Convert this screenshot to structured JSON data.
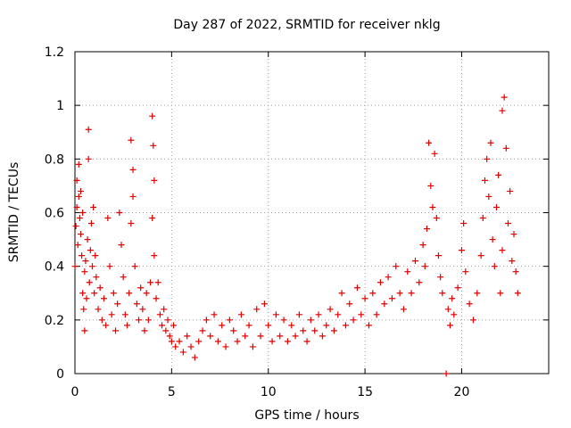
{
  "chart_data": {
    "type": "scatter",
    "title": "Day 287 of 2022, SRMTID for receiver nklg",
    "xlabel": "GPS time / hours",
    "ylabel": "SRMTID / TECUs",
    "xlim": [
      0,
      24.5
    ],
    "ylim": [
      0,
      1.2
    ],
    "grid": true,
    "marker": "+",
    "color": "#e00000",
    "x_ticks": [
      0,
      5,
      10,
      15,
      20
    ],
    "x_tick_labels": [
      "0",
      "5",
      "10",
      "15",
      "20"
    ],
    "y_ticks": [
      0,
      0.2,
      0.4,
      0.6,
      0.8,
      1.0,
      1.2
    ],
    "y_tick_labels": [
      "0",
      "0.2",
      "0.4",
      "0.6",
      "0.8",
      "1",
      "1.2"
    ],
    "series": [
      {
        "name": "SRMTID",
        "points": [
          [
            0.0,
            0.4
          ],
          [
            0.05,
            0.55
          ],
          [
            0.1,
            0.72
          ],
          [
            0.1,
            0.62
          ],
          [
            0.15,
            0.48
          ],
          [
            0.2,
            0.66
          ],
          [
            0.2,
            0.78
          ],
          [
            0.25,
            0.58
          ],
          [
            0.3,
            0.52
          ],
          [
            0.3,
            0.68
          ],
          [
            0.35,
            0.44
          ],
          [
            0.4,
            0.6
          ],
          [
            0.4,
            0.3
          ],
          [
            0.45,
            0.24
          ],
          [
            0.5,
            0.16
          ],
          [
            0.5,
            0.38
          ],
          [
            0.55,
            0.42
          ],
          [
            0.6,
            0.28
          ],
          [
            0.65,
            0.5
          ],
          [
            0.7,
            0.91
          ],
          [
            0.7,
            0.8
          ],
          [
            0.75,
            0.34
          ],
          [
            0.8,
            0.46
          ],
          [
            0.85,
            0.56
          ],
          [
            0.9,
            0.4
          ],
          [
            0.95,
            0.62
          ],
          [
            1.0,
            0.3
          ],
          [
            1.05,
            0.44
          ],
          [
            1.1,
            0.36
          ],
          [
            1.2,
            0.24
          ],
          [
            1.3,
            0.32
          ],
          [
            1.4,
            0.2
          ],
          [
            1.5,
            0.28
          ],
          [
            1.6,
            0.18
          ],
          [
            1.7,
            0.58
          ],
          [
            1.8,
            0.4
          ],
          [
            1.9,
            0.22
          ],
          [
            2.0,
            0.3
          ],
          [
            2.1,
            0.16
          ],
          [
            2.2,
            0.26
          ],
          [
            2.3,
            0.6
          ],
          [
            2.4,
            0.48
          ],
          [
            2.5,
            0.36
          ],
          [
            2.6,
            0.22
          ],
          [
            2.7,
            0.18
          ],
          [
            2.8,
            0.3
          ],
          [
            2.9,
            0.56
          ],
          [
            2.9,
            0.87
          ],
          [
            3.0,
            0.76
          ],
          [
            3.0,
            0.66
          ],
          [
            3.1,
            0.4
          ],
          [
            3.2,
            0.26
          ],
          [
            3.3,
            0.2
          ],
          [
            3.4,
            0.32
          ],
          [
            3.5,
            0.24
          ],
          [
            3.6,
            0.16
          ],
          [
            3.7,
            0.3
          ],
          [
            3.8,
            0.2
          ],
          [
            3.9,
            0.34
          ],
          [
            4.0,
            0.58
          ],
          [
            4.0,
            0.96
          ],
          [
            4.05,
            0.85
          ],
          [
            4.1,
            0.72
          ],
          [
            4.1,
            0.44
          ],
          [
            4.2,
            0.28
          ],
          [
            4.3,
            0.34
          ],
          [
            4.4,
            0.22
          ],
          [
            4.5,
            0.18
          ],
          [
            4.6,
            0.24
          ],
          [
            4.7,
            0.16
          ],
          [
            4.8,
            0.2
          ],
          [
            4.9,
            0.14
          ],
          [
            5.0,
            0.12
          ],
          [
            5.1,
            0.18
          ],
          [
            5.2,
            0.1
          ],
          [
            5.4,
            0.12
          ],
          [
            5.6,
            0.08
          ],
          [
            5.8,
            0.14
          ],
          [
            6.0,
            0.1
          ],
          [
            6.2,
            0.06
          ],
          [
            6.4,
            0.12
          ],
          [
            6.6,
            0.16
          ],
          [
            6.8,
            0.2
          ],
          [
            7.0,
            0.14
          ],
          [
            7.2,
            0.22
          ],
          [
            7.4,
            0.12
          ],
          [
            7.6,
            0.18
          ],
          [
            7.8,
            0.1
          ],
          [
            8.0,
            0.2
          ],
          [
            8.2,
            0.16
          ],
          [
            8.4,
            0.12
          ],
          [
            8.6,
            0.22
          ],
          [
            8.8,
            0.14
          ],
          [
            9.0,
            0.18
          ],
          [
            9.2,
            0.1
          ],
          [
            9.4,
            0.24
          ],
          [
            9.6,
            0.14
          ],
          [
            9.8,
            0.26
          ],
          [
            10.0,
            0.18
          ],
          [
            10.2,
            0.12
          ],
          [
            10.4,
            0.22
          ],
          [
            10.6,
            0.14
          ],
          [
            10.8,
            0.2
          ],
          [
            11.0,
            0.12
          ],
          [
            11.2,
            0.18
          ],
          [
            11.4,
            0.14
          ],
          [
            11.6,
            0.22
          ],
          [
            11.8,
            0.16
          ],
          [
            12.0,
            0.12
          ],
          [
            12.2,
            0.2
          ],
          [
            12.4,
            0.16
          ],
          [
            12.6,
            0.22
          ],
          [
            12.8,
            0.14
          ],
          [
            13.0,
            0.18
          ],
          [
            13.2,
            0.24
          ],
          [
            13.4,
            0.16
          ],
          [
            13.6,
            0.22
          ],
          [
            13.8,
            0.3
          ],
          [
            14.0,
            0.18
          ],
          [
            14.2,
            0.26
          ],
          [
            14.4,
            0.2
          ],
          [
            14.6,
            0.32
          ],
          [
            14.8,
            0.22
          ],
          [
            15.0,
            0.28
          ],
          [
            15.2,
            0.18
          ],
          [
            15.4,
            0.3
          ],
          [
            15.6,
            0.22
          ],
          [
            15.8,
            0.34
          ],
          [
            16.0,
            0.26
          ],
          [
            16.2,
            0.36
          ],
          [
            16.4,
            0.28
          ],
          [
            16.6,
            0.4
          ],
          [
            16.8,
            0.3
          ],
          [
            17.0,
            0.24
          ],
          [
            17.2,
            0.38
          ],
          [
            17.4,
            0.3
          ],
          [
            17.6,
            0.42
          ],
          [
            17.8,
            0.34
          ],
          [
            18.0,
            0.48
          ],
          [
            18.1,
            0.4
          ],
          [
            18.2,
            0.54
          ],
          [
            18.3,
            0.86
          ],
          [
            18.4,
            0.7
          ],
          [
            18.5,
            0.62
          ],
          [
            18.6,
            0.82
          ],
          [
            18.7,
            0.58
          ],
          [
            18.8,
            0.44
          ],
          [
            18.9,
            0.36
          ],
          [
            19.0,
            0.3
          ],
          [
            19.2,
            0.0
          ],
          [
            19.3,
            0.24
          ],
          [
            19.4,
            0.18
          ],
          [
            19.5,
            0.28
          ],
          [
            19.6,
            0.22
          ],
          [
            19.8,
            0.32
          ],
          [
            20.0,
            0.46
          ],
          [
            20.1,
            0.56
          ],
          [
            20.2,
            0.38
          ],
          [
            20.4,
            0.26
          ],
          [
            20.6,
            0.2
          ],
          [
            20.8,
            0.3
          ],
          [
            21.0,
            0.44
          ],
          [
            21.1,
            0.58
          ],
          [
            21.2,
            0.72
          ],
          [
            21.3,
            0.8
          ],
          [
            21.4,
            0.66
          ],
          [
            21.5,
            0.86
          ],
          [
            21.6,
            0.5
          ],
          [
            21.7,
            0.4
          ],
          [
            21.8,
            0.62
          ],
          [
            21.9,
            0.74
          ],
          [
            22.0,
            0.3
          ],
          [
            22.1,
            0.46
          ],
          [
            22.1,
            0.98
          ],
          [
            22.2,
            1.03
          ],
          [
            22.3,
            0.84
          ],
          [
            22.4,
            0.56
          ],
          [
            22.5,
            0.68
          ],
          [
            22.6,
            0.42
          ],
          [
            22.7,
            0.52
          ],
          [
            22.8,
            0.38
          ],
          [
            22.9,
            0.3
          ]
        ]
      }
    ]
  }
}
